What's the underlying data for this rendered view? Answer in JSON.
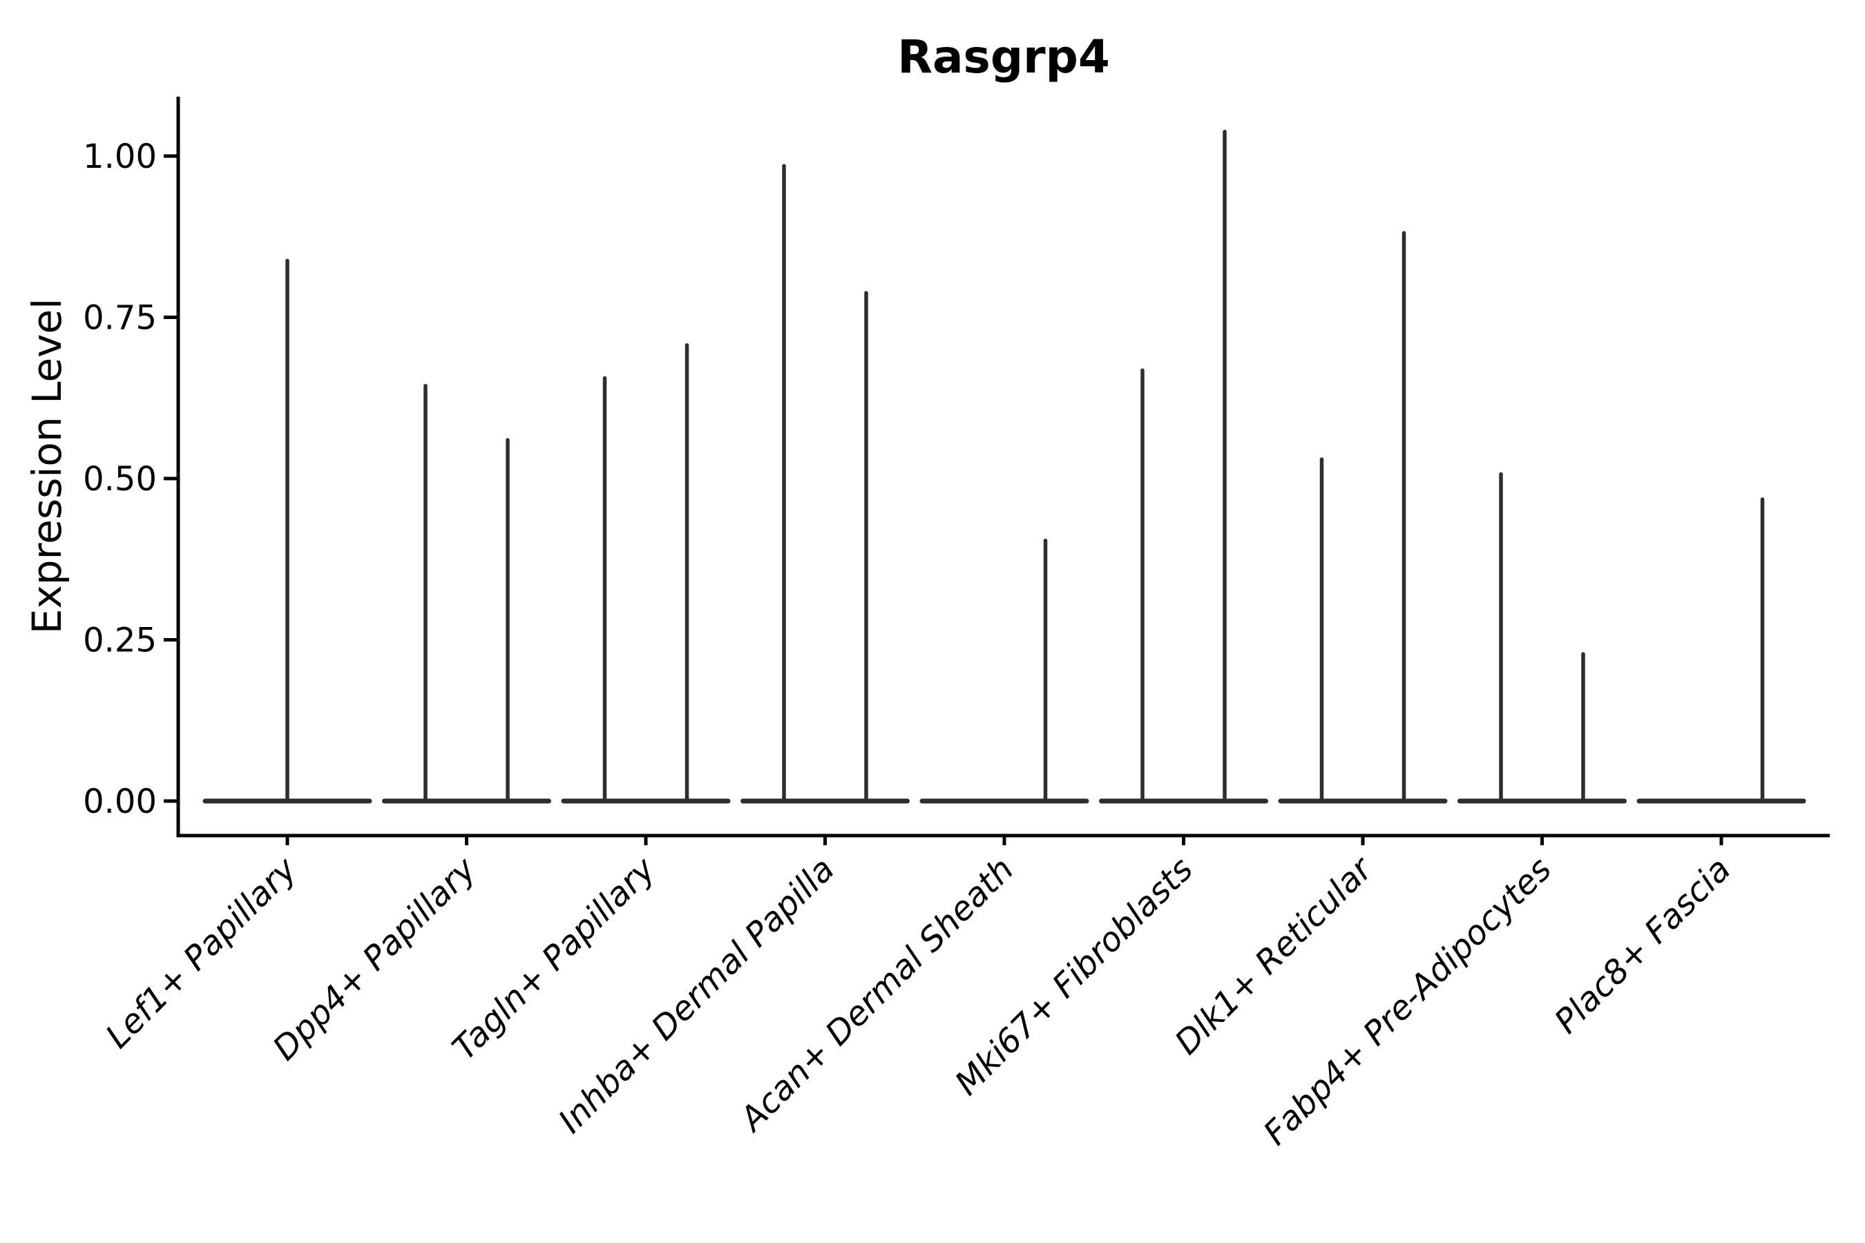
{
  "title": "Rasgrp4",
  "colors": {
    "violin": "#2e2e2e",
    "axis": "#000000",
    "background": "#ffffff"
  },
  "chart_data": {
    "type": "violin",
    "title": "Rasgrp4",
    "xlabel": "",
    "ylabel": "Expression Level",
    "grid": false,
    "legend": "none",
    "ylim": [
      -0.054,
      1.092
    ],
    "y_ticks": [
      {
        "value": 0.0,
        "label": "0.00"
      },
      {
        "value": 0.25,
        "label": "0.25"
      },
      {
        "value": 0.5,
        "label": "0.50"
      },
      {
        "value": 0.75,
        "label": "0.75"
      },
      {
        "value": 1.0,
        "label": "1.00"
      }
    ],
    "description": "Violin plot of Rasgrp4 expression; most cells at 0 giving flat wide bases with thin spikes up to the maximum expressed value. Two dodged violin slots per category (left/right); spikes shown only where expression occurs.",
    "categories": [
      {
        "label": "Lef1+ Papillary",
        "violins": [
          {
            "side": "center",
            "peak": 0.84
          }
        ]
      },
      {
        "label": "Dpp4+ Papillary",
        "violins": [
          {
            "side": "left",
            "peak": 0.646
          },
          {
            "side": "right",
            "peak": 0.562
          }
        ]
      },
      {
        "label": "Tagln+ Papillary",
        "violins": [
          {
            "side": "left",
            "peak": 0.658
          },
          {
            "side": "right",
            "peak": 0.709
          }
        ]
      },
      {
        "label": "Inhba+ Dermal Papilla",
        "violins": [
          {
            "side": "left",
            "peak": 0.987
          },
          {
            "side": "right",
            "peak": 0.79
          }
        ]
      },
      {
        "label": "Acan+ Dermal Sheath",
        "violins": [
          {
            "side": "right",
            "peak": 0.406
          }
        ]
      },
      {
        "label": "Mki67+ Fibroblasts",
        "violins": [
          {
            "side": "left",
            "peak": 0.67
          },
          {
            "side": "right",
            "peak": 1.04
          }
        ]
      },
      {
        "label": "Dlk1+ Reticular",
        "violins": [
          {
            "side": "left",
            "peak": 0.532
          },
          {
            "side": "right",
            "peak": 0.883
          }
        ]
      },
      {
        "label": "Fabp4+ Pre-Adipocytes",
        "violins": [
          {
            "side": "left",
            "peak": 0.509
          },
          {
            "side": "right",
            "peak": 0.23
          }
        ]
      },
      {
        "label": "Plac8+ Fascia",
        "violins": [
          {
            "side": "right",
            "peak": 0.47
          }
        ]
      }
    ]
  }
}
